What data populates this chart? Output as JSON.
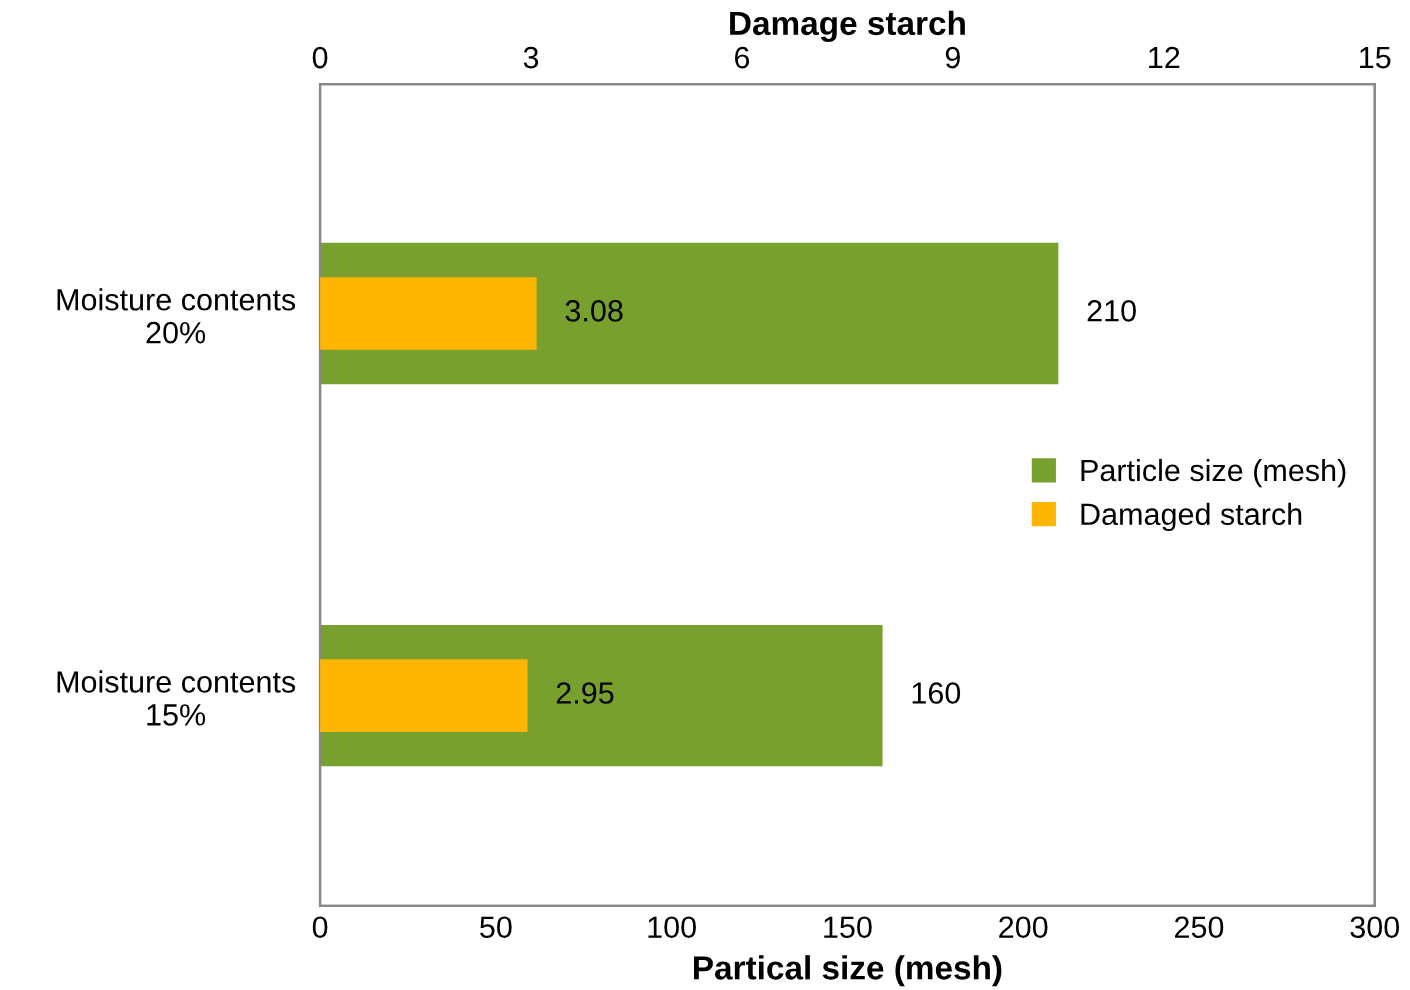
{
  "chart_data": {
    "type": "bar",
    "orientation": "horizontal",
    "categories": [
      "Moisture contents\n20%",
      "Moisture contents\n15%"
    ],
    "series": [
      {
        "name": "Particle size (mesh)",
        "color": "#77a02e",
        "values": [
          210,
          160
        ]
      },
      {
        "name": "Damaged starch",
        "color": "#ffb600",
        "values": [
          3.08,
          2.95
        ],
        "axis": "x2"
      }
    ],
    "xlabel": "Partical size (mesh)",
    "x2label": "Damage starch",
    "xlim": [
      0,
      300
    ],
    "xticks": [
      0,
      50,
      100,
      150,
      200,
      250,
      300
    ],
    "x2lim": [
      0,
      15
    ],
    "x2ticks": [
      0,
      3,
      6,
      9,
      12,
      15
    ],
    "data_labels": true,
    "legend": "right",
    "grid": false
  }
}
